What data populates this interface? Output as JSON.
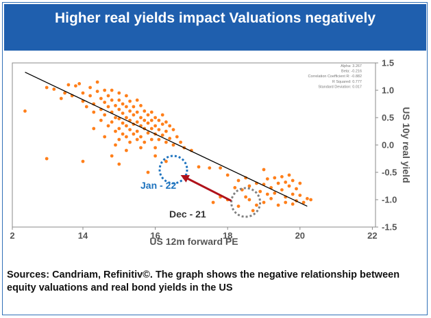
{
  "header": {
    "title": "Higher real yields impact Valuations negatively"
  },
  "footer": {
    "source": "Sources: Candriam, Refinitiv©. The graph shows the negative relationship between equity valuations and real bond yields in the US"
  },
  "colors": {
    "title_bg": "#1f5fae",
    "points": "#ff7f1a",
    "trend": "#000000",
    "jan_circle": "#1e73be",
    "dec_circle": "#808080",
    "arrow": "#b0121b",
    "jan_label": "#1e73be"
  },
  "chart_data": {
    "type": "scatter",
    "xlabel": "US 12m forward PE",
    "ylabel": "US 10y real yield",
    "xlim": [
      2,
      22
    ],
    "ylim": [
      -1.5,
      1.5
    ],
    "xticks": [
      2,
      14,
      16,
      18,
      20,
      22
    ],
    "yticks": [
      1.5,
      1.0,
      0.5,
      0.0,
      -0.5,
      -1.0,
      -1.5
    ],
    "xtick_labels": [
      "2",
      "14",
      "16",
      "18",
      "20",
      "22"
    ],
    "ytick_labels": [
      "1.5",
      "1.0",
      "0.5",
      "0.0",
      "-0.5",
      "-1.0",
      "-1.5"
    ],
    "stats": [
      "Alpha: 3.267",
      "Beta: -0.216",
      "Correlation Coefficient R: -0.882",
      "R Squared: 0.777",
      "Standard Deviation: 0.017"
    ],
    "trendline": {
      "x": [
        12.4,
        20.2
      ],
      "y": [
        1.33,
        -1.12
      ]
    },
    "annotations": [
      {
        "label": "Jan - 22",
        "x": 16.5,
        "y": -0.45
      },
      {
        "label": "Dec - 21",
        "x": 18.5,
        "y": -1.05
      }
    ],
    "arrow": {
      "from": [
        18.1,
        -1.02
      ],
      "to": [
        16.7,
        -0.55
      ]
    },
    "points": [
      [
        12.4,
        0.62
      ],
      [
        13.0,
        1.05
      ],
      [
        13.2,
        1.02
      ],
      [
        13.4,
        0.85
      ],
      [
        13.5,
        0.95
      ],
      [
        13.6,
        1.1
      ],
      [
        13.7,
        0.9
      ],
      [
        13.8,
        1.08
      ],
      [
        13.9,
        1.12
      ],
      [
        14.0,
        0.95
      ],
      [
        14.0,
        0.8
      ],
      [
        14.1,
        0.7
      ],
      [
        14.2,
        1.05
      ],
      [
        14.2,
        0.9
      ],
      [
        14.3,
        0.75
      ],
      [
        14.3,
        0.6
      ],
      [
        14.4,
        1.15
      ],
      [
        14.4,
        0.98
      ],
      [
        14.5,
        0.85
      ],
      [
        14.5,
        0.65
      ],
      [
        14.5,
        0.45
      ],
      [
        14.6,
        1.0
      ],
      [
        14.6,
        0.78
      ],
      [
        14.6,
        0.55
      ],
      [
        14.7,
        0.9
      ],
      [
        14.7,
        0.7
      ],
      [
        14.7,
        0.35
      ],
      [
        14.8,
        1.0
      ],
      [
        14.8,
        0.82
      ],
      [
        14.8,
        0.6
      ],
      [
        14.8,
        0.42
      ],
      [
        14.9,
        0.72
      ],
      [
        14.9,
        0.5
      ],
      [
        14.9,
        0.25
      ],
      [
        15.0,
        0.95
      ],
      [
        15.0,
        0.82
      ],
      [
        15.0,
        0.65
      ],
      [
        15.0,
        0.48
      ],
      [
        15.0,
        0.3
      ],
      [
        15.0,
        0.1
      ],
      [
        15.1,
        0.75
      ],
      [
        15.1,
        0.58
      ],
      [
        15.1,
        0.4
      ],
      [
        15.1,
        0.2
      ],
      [
        15.2,
        0.9
      ],
      [
        15.2,
        0.7
      ],
      [
        15.2,
        0.5
      ],
      [
        15.2,
        0.35
      ],
      [
        15.2,
        0.15
      ],
      [
        15.3,
        0.8
      ],
      [
        15.3,
        0.62
      ],
      [
        15.3,
        0.45
      ],
      [
        15.3,
        0.28
      ],
      [
        15.3,
        0.05
      ],
      [
        15.4,
        0.7
      ],
      [
        15.4,
        0.55
      ],
      [
        15.4,
        0.38
      ],
      [
        15.4,
        0.2
      ],
      [
        15.5,
        0.82
      ],
      [
        15.5,
        0.6
      ],
      [
        15.5,
        0.42
      ],
      [
        15.5,
        0.25
      ],
      [
        15.5,
        0.1
      ],
      [
        15.6,
        0.72
      ],
      [
        15.6,
        0.5
      ],
      [
        15.6,
        0.35
      ],
      [
        15.6,
        0.15
      ],
      [
        15.7,
        0.62
      ],
      [
        15.7,
        0.45
      ],
      [
        15.7,
        0.3
      ],
      [
        15.7,
        0.05
      ],
      [
        15.8,
        0.55
      ],
      [
        15.8,
        0.4
      ],
      [
        15.8,
        0.22
      ],
      [
        15.9,
        0.6
      ],
      [
        15.9,
        0.45
      ],
      [
        15.9,
        0.3
      ],
      [
        15.9,
        0.1
      ],
      [
        16.0,
        0.5
      ],
      [
        16.0,
        0.35
      ],
      [
        16.0,
        0.2
      ],
      [
        16.0,
        -0.05
      ],
      [
        16.1,
        0.45
      ],
      [
        16.1,
        0.28
      ],
      [
        16.1,
        0.1
      ],
      [
        16.2,
        0.55
      ],
      [
        16.2,
        0.38
      ],
      [
        16.2,
        0.18
      ],
      [
        16.3,
        0.42
      ],
      [
        16.3,
        0.25
      ],
      [
        16.3,
        0.05
      ],
      [
        16.4,
        0.35
      ],
      [
        16.4,
        0.12
      ],
      [
        16.5,
        0.28
      ],
      [
        16.5,
        0.0
      ],
      [
        16.6,
        0.15
      ],
      [
        16.7,
        0.05
      ],
      [
        16.8,
        -0.05
      ],
      [
        17.0,
        -0.1
      ],
      [
        14.3,
        0.3
      ],
      [
        14.6,
        0.15
      ],
      [
        14.9,
        0.0
      ],
      [
        15.2,
        -0.1
      ],
      [
        15.6,
        -0.05
      ],
      [
        16.0,
        -0.2
      ],
      [
        13.0,
        -0.25
      ],
      [
        14.0,
        -0.3
      ],
      [
        14.8,
        -0.2
      ],
      [
        15.0,
        -0.35
      ],
      [
        15.8,
        -0.5
      ],
      [
        16.3,
        -0.3
      ],
      [
        17.2,
        -0.4
      ],
      [
        17.5,
        -0.42
      ],
      [
        17.8,
        -0.42
      ],
      [
        18.0,
        -0.55
      ],
      [
        18.3,
        -0.65
      ],
      [
        18.5,
        -0.6
      ],
      [
        18.2,
        -0.78
      ],
      [
        18.4,
        -0.82
      ],
      [
        18.6,
        -0.75
      ],
      [
        18.8,
        -0.7
      ],
      [
        18.9,
        -0.85
      ],
      [
        19.0,
        -0.72
      ],
      [
        19.1,
        -0.62
      ],
      [
        19.2,
        -0.78
      ],
      [
        19.3,
        -0.88
      ],
      [
        19.4,
        -0.7
      ],
      [
        19.5,
        -0.58
      ],
      [
        19.5,
        -0.82
      ],
      [
        19.6,
        -0.95
      ],
      [
        19.6,
        -0.68
      ],
      [
        19.7,
        -0.75
      ],
      [
        19.7,
        -0.55
      ],
      [
        19.8,
        -0.9
      ],
      [
        19.8,
        -0.65
      ],
      [
        19.9,
        -0.8
      ],
      [
        19.9,
        -1.02
      ],
      [
        20.0,
        -0.7
      ],
      [
        20.0,
        -0.92
      ],
      [
        20.1,
        -1.05
      ],
      [
        20.2,
        -0.98
      ],
      [
        20.3,
        -1.0
      ],
      [
        19.0,
        -0.45
      ],
      [
        19.3,
        -0.6
      ],
      [
        18.6,
        -1.0
      ],
      [
        18.8,
        -1.1
      ],
      [
        19.0,
        -1.05
      ],
      [
        19.2,
        -0.98
      ],
      [
        19.4,
        -1.1
      ],
      [
        19.6,
        -1.05
      ],
      [
        18.5,
        -0.95
      ],
      [
        18.3,
        -1.12
      ],
      [
        18.7,
        -1.2
      ],
      [
        19.1,
        -0.9
      ],
      [
        19.8,
        -1.08
      ],
      [
        17.8,
        -0.95
      ],
      [
        17.6,
        -1.05
      ],
      [
        18.0,
        -1.0
      ]
    ]
  }
}
